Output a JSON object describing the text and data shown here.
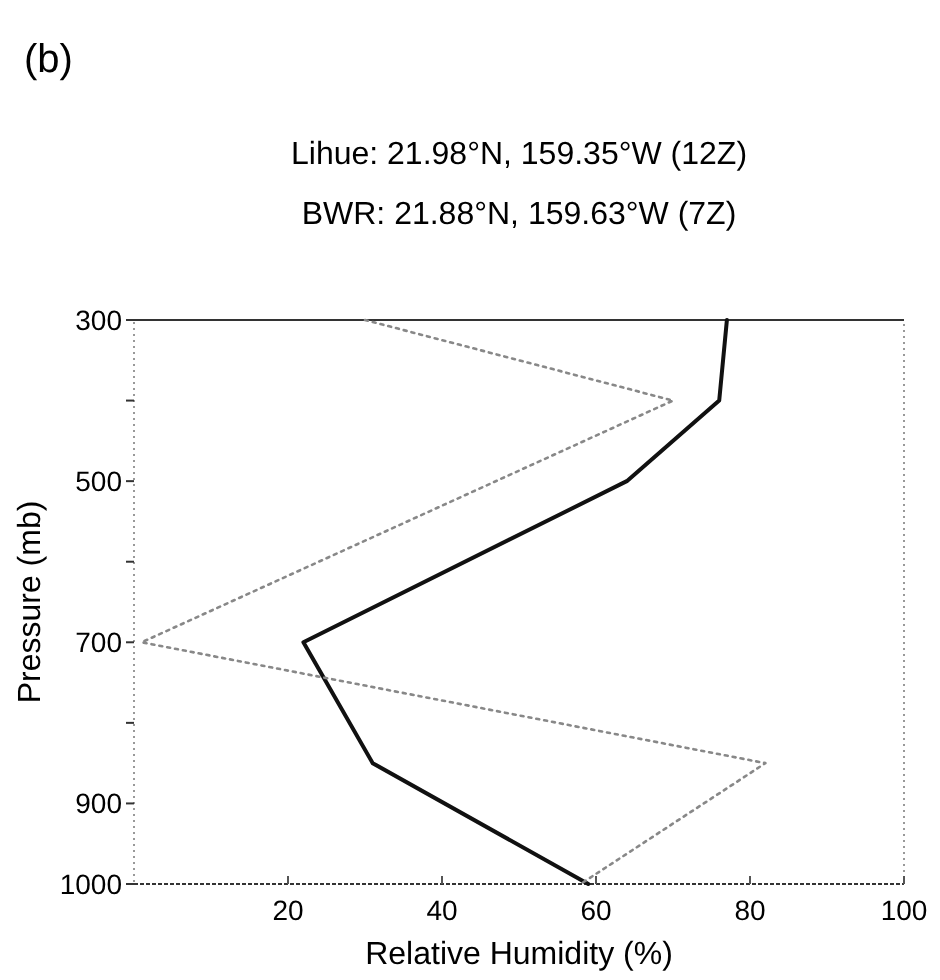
{
  "chart_data": {
    "type": "line",
    "title": "Lihue: 21.98°N, 159.35°W (12Z)",
    "subtitle": "BWR: 21.88°N, 159.63°W (7Z)",
    "annotations": [
      "(b)"
    ],
    "xlabel": "Relative Humidity (%)",
    "ylabel": "Pressure (mb)",
    "xlim": [
      0,
      100
    ],
    "xticks": [
      20,
      40,
      60,
      80,
      100
    ],
    "ylim": [
      1000,
      300
    ],
    "yticks": [
      300,
      {
        "value": 400,
        "label": null
      },
      500,
      {
        "value": 600,
        "label": null
      },
      700,
      {
        "value": 800,
        "label": null
      },
      900,
      1000
    ],
    "series": [
      {
        "color": "#111111",
        "line_style": "solid",
        "x": [
          77,
          76,
          64,
          22,
          31,
          59
        ],
        "values": [
          300,
          400,
          500,
          700,
          850,
          1000
        ]
      },
      {
        "color": "#888888",
        "line_style": "dotted",
        "x": [
          30,
          70,
          1,
          82,
          58
        ],
        "values": [
          300,
          400,
          700,
          850,
          1000
        ]
      }
    ],
    "marker": "none",
    "grid": false
  }
}
